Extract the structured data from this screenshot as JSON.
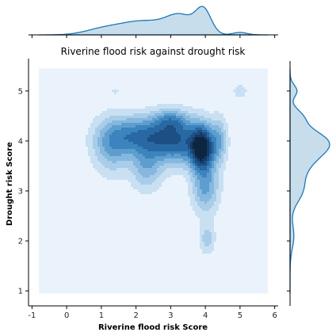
{
  "chart_data": {
    "type": "kde-joint",
    "title": "Riverine flood risk against drought risk",
    "xlabel": "Riverine flood risk Score",
    "ylabel": "Drought risk Score",
    "xlim": [
      -1.1,
      6.1
    ],
    "ylim": [
      0.7,
      5.6
    ],
    "xticks": [
      -1,
      0,
      1,
      2,
      3,
      4,
      5,
      6
    ],
    "yticks": [
      1,
      2,
      3,
      4,
      5
    ],
    "fill_range": {
      "x": [
        -0.8,
        5.8
      ],
      "y": [
        0.95,
        5.45
      ]
    },
    "color": "#1f77b4",
    "density_clusters": [
      {
        "x": 3.9,
        "y": 3.85,
        "sx": 0.22,
        "sy": 0.28,
        "w": 1.0
      },
      {
        "x": 3.2,
        "y": 4.0,
        "sx": 0.55,
        "sy": 0.3,
        "w": 0.6
      },
      {
        "x": 2.1,
        "y": 4.1,
        "sx": 0.6,
        "sy": 0.25,
        "w": 0.5
      },
      {
        "x": 1.3,
        "y": 3.9,
        "sx": 0.35,
        "sy": 0.35,
        "w": 0.3
      },
      {
        "x": 2.3,
        "y": 3.5,
        "sx": 0.3,
        "sy": 0.3,
        "w": 0.28
      },
      {
        "x": 4.0,
        "y": 3.1,
        "sx": 0.25,
        "sy": 0.35,
        "w": 0.35
      },
      {
        "x": 4.05,
        "y": 2.05,
        "sx": 0.15,
        "sy": 0.2,
        "w": 0.18
      },
      {
        "x": 5.0,
        "y": 5.0,
        "sx": 0.15,
        "sy": 0.1,
        "w": 0.1
      },
      {
        "x": 1.4,
        "y": 5.0,
        "sx": 0.15,
        "sy": 0.07,
        "w": 0.06
      },
      {
        "x": 3.0,
        "y": 4.4,
        "sx": 0.3,
        "sy": 0.15,
        "w": 0.3
      },
      {
        "x": 4.4,
        "y": 4.0,
        "sx": 0.15,
        "sy": 0.3,
        "w": 0.25
      }
    ],
    "x_marginal_peaks": [
      {
        "x": 2.2,
        "s": 0.7,
        "w": 0.45
      },
      {
        "x": 3.3,
        "s": 0.4,
        "w": 0.55
      },
      {
        "x": 3.95,
        "s": 0.22,
        "w": 0.75
      },
      {
        "x": 1.0,
        "s": 0.5,
        "w": 0.15
      },
      {
        "x": 5.0,
        "s": 0.2,
        "w": 0.08
      }
    ],
    "y_marginal_peaks": [
      {
        "y": 4.0,
        "s": 0.25,
        "w": 1.0
      },
      {
        "y": 3.6,
        "s": 0.3,
        "w": 0.55
      },
      {
        "y": 3.0,
        "s": 0.25,
        "w": 0.35
      },
      {
        "y": 4.5,
        "s": 0.15,
        "w": 0.3
      },
      {
        "y": 5.0,
        "s": 0.12,
        "w": 0.22
      },
      {
        "y": 2.1,
        "s": 0.25,
        "w": 0.12
      }
    ]
  }
}
